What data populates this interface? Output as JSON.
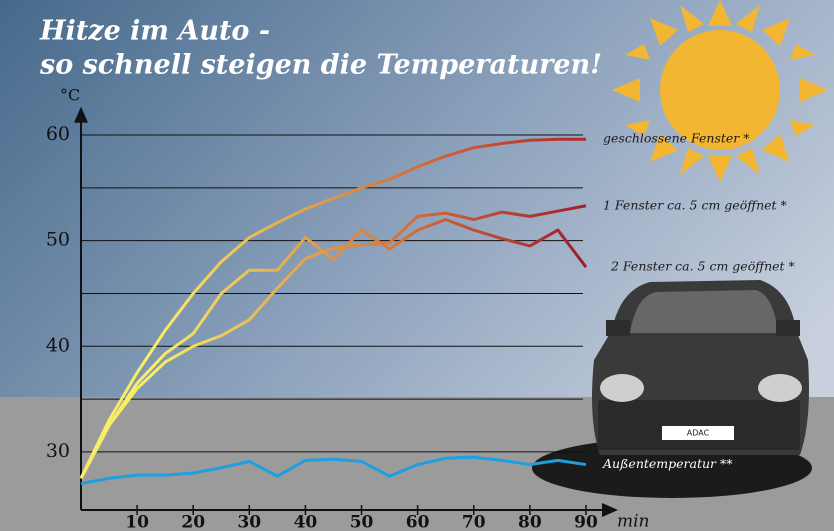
{
  "chart_data": {
    "type": "line",
    "title": "Hitze im Auto -",
    "subtitle": "so schnell steigen die Temperaturen!",
    "y_label": "°C",
    "x_label": "min",
    "x": [
      0,
      5,
      10,
      15,
      20,
      25,
      30,
      35,
      40,
      45,
      50,
      55,
      60,
      65,
      70,
      75,
      80,
      85,
      90
    ],
    "series": [
      {
        "name": "geschlossene Fenster *",
        "color": "#b3252c",
        "values": [
          27.5,
          33,
          37.5,
          41.5,
          45,
          48,
          50.3,
          51.7,
          53,
          54,
          55,
          55.8,
          57,
          58,
          58.8,
          59.2,
          59.5,
          59.6,
          59.6
        ]
      },
      {
        "name": "1 Fenster ca. 5 cm geöffnet *",
        "color": "#a11f2b",
        "values": [
          27.5,
          32.5,
          36,
          38.5,
          40,
          41,
          42.5,
          45.5,
          48.3,
          49.3,
          49.6,
          49.8,
          52.3,
          52.6,
          52,
          52.7,
          52.3,
          52.8,
          53.3
        ]
      },
      {
        "name": "2 Fenster ca. 5 cm geöffnet *",
        "color": "#9c1d2c",
        "values": [
          27.5,
          32.5,
          36.5,
          39.3,
          41.2,
          45,
          47.2,
          47.2,
          50.3,
          48.2,
          51,
          49.2,
          51,
          52,
          51,
          50.2,
          49.5,
          51,
          47.5
        ]
      },
      {
        "name": "Außentemperatur **",
        "color": "#1e9fe0",
        "values": [
          27,
          27.5,
          27.8,
          27.8,
          28,
          28.5,
          29.1,
          27.7,
          29.2,
          29.3,
          29.1,
          27.7,
          28.8,
          29.4,
          29.5,
          29.2,
          28.8,
          29.2,
          28.8
        ]
      }
    ],
    "gradient_start": "#f7ee66",
    "xlim": [
      0,
      95
    ],
    "xticks": [
      10,
      20,
      30,
      40,
      50,
      60,
      70,
      80,
      90
    ],
    "ylim": [
      24.5,
      62.5
    ],
    "yticks": [
      30,
      40,
      50,
      60
    ],
    "grid_lines": [
      30,
      35,
      40,
      45,
      50,
      55,
      60
    ]
  }
}
